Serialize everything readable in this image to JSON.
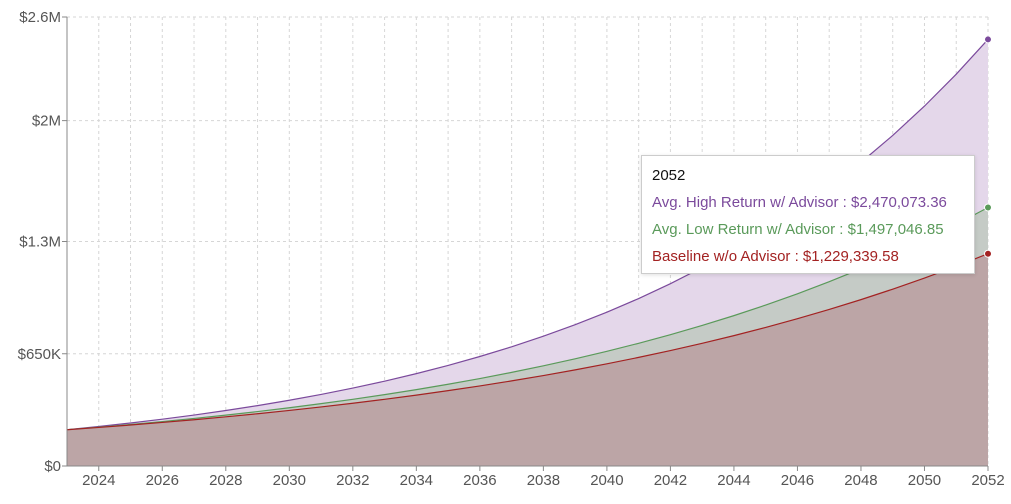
{
  "chart_data": {
    "type": "area",
    "x": [
      2023,
      2024,
      2025,
      2026,
      2027,
      2028,
      2029,
      2030,
      2031,
      2032,
      2033,
      2034,
      2035,
      2036,
      2037,
      2038,
      2039,
      2040,
      2041,
      2042,
      2043,
      2044,
      2045,
      2046,
      2047,
      2048,
      2049,
      2050,
      2051,
      2052
    ],
    "x_ticks": [
      2024,
      2026,
      2028,
      2030,
      2032,
      2034,
      2036,
      2038,
      2040,
      2042,
      2044,
      2046,
      2048,
      2050,
      2052
    ],
    "x_tick_labels": [
      "2024",
      "2026",
      "2028",
      "2030",
      "2032",
      "2034",
      "2036",
      "2038",
      "2040",
      "2042",
      "2044",
      "2046",
      "2048",
      "2050",
      "2052"
    ],
    "xlim": [
      2023,
      2052
    ],
    "ylim": [
      0,
      2600000
    ],
    "y_ticks": [
      0,
      650000,
      1300000,
      2000000,
      2600000
    ],
    "y_tick_labels": [
      "$0",
      "$650K",
      "$1.3M",
      "$2M",
      "$2.6M"
    ],
    "grid": true,
    "series": [
      {
        "name": "Avg. High Return w/ Advisor",
        "color": "#7b4a9c",
        "fill": "#e4d7ea",
        "start": 210000,
        "end": 2470073.36
      },
      {
        "name": "Avg. Low Return w/ Advisor",
        "color": "#5a9a5a",
        "fill": "#c5cbc6",
        "start": 210000,
        "end": 1497046.85
      },
      {
        "name": "Baseline w/o Advisor",
        "color": "#a32222",
        "fill": "#bca5a6",
        "start": 210000,
        "end": 1229339.58
      }
    ],
    "tooltip": {
      "title": "2052",
      "rows": [
        {
          "label": "Avg. High Return w/ Advisor : $2,470,073.36",
          "color": "#7b4a9c"
        },
        {
          "label": "Avg. Low Return w/ Advisor : $1,497,046.85",
          "color": "#5a9a5a"
        },
        {
          "label": "Baseline w/o Advisor : $1,229,339.58",
          "color": "#a32222"
        }
      ]
    }
  }
}
